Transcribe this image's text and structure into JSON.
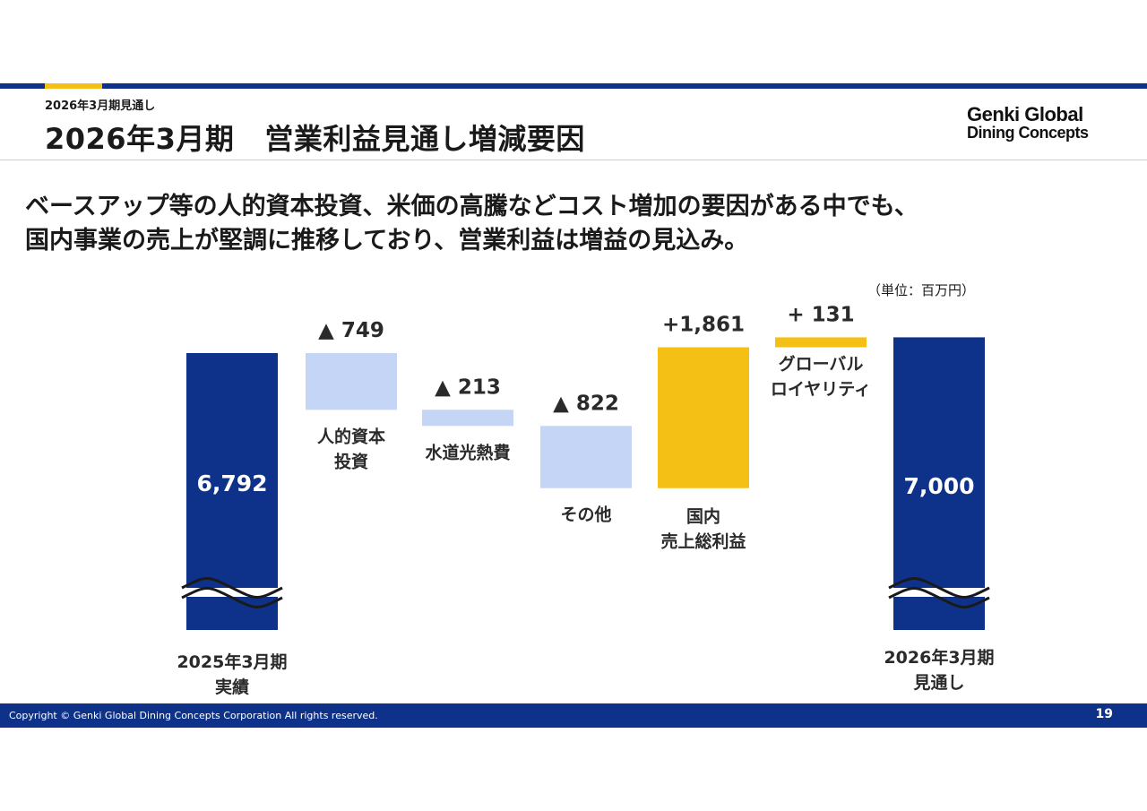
{
  "header": {
    "subtitle": "2026年3月期見通し",
    "title_a": "2026年3月期",
    "title_b": "営業利益見通し増減要因",
    "logo_line1": "Genki Global",
    "logo_line2": "Dining Concepts"
  },
  "headline": {
    "line1": "ベースアップ等の人的資本投資、米価の高騰などコスト増加の要因がある中でも、",
    "line2": "国内事業の売上が堅調に推移しており、営業利益は増益の見込み。"
  },
  "unit_label": "（単位：百万円）",
  "chart_data": {
    "type": "waterfall",
    "start": {
      "value": 6792,
      "value_label": "6,792",
      "label_lines": [
        "2025年3月期",
        "実績"
      ],
      "color": "#0e3189"
    },
    "end": {
      "value": 7000,
      "value_label": "7,000",
      "label_lines": [
        "2026年3月期",
        "見通し"
      ],
      "color": "#0e3189"
    },
    "steps": [
      {
        "value": -749,
        "value_label": "▲ 749",
        "label_lines": [
          "人的資本",
          "投資"
        ],
        "color": "#c5d5f5"
      },
      {
        "value": -213,
        "value_label": "▲ 213",
        "label_lines": [
          "水道光熱費"
        ],
        "color": "#c5d5f5"
      },
      {
        "value": -822,
        "value_label": "▲ 822",
        "label_lines": [
          "その他"
        ],
        "color": "#c5d5f5"
      },
      {
        "value": 1861,
        "value_label": "+1,861",
        "label_lines": [
          "国内",
          "売上総利益"
        ],
        "color": "#f5c016"
      },
      {
        "value": 131,
        "value_label": "+ 131",
        "label_lines": [
          "グローバル",
          "ロイヤリティ"
        ],
        "color": "#f5c016"
      }
    ],
    "axis_break": true
  },
  "footer": {
    "copyright": "Copyright © Genki Global Dining Concepts Corporation All rights reserved.",
    "page": "19"
  }
}
